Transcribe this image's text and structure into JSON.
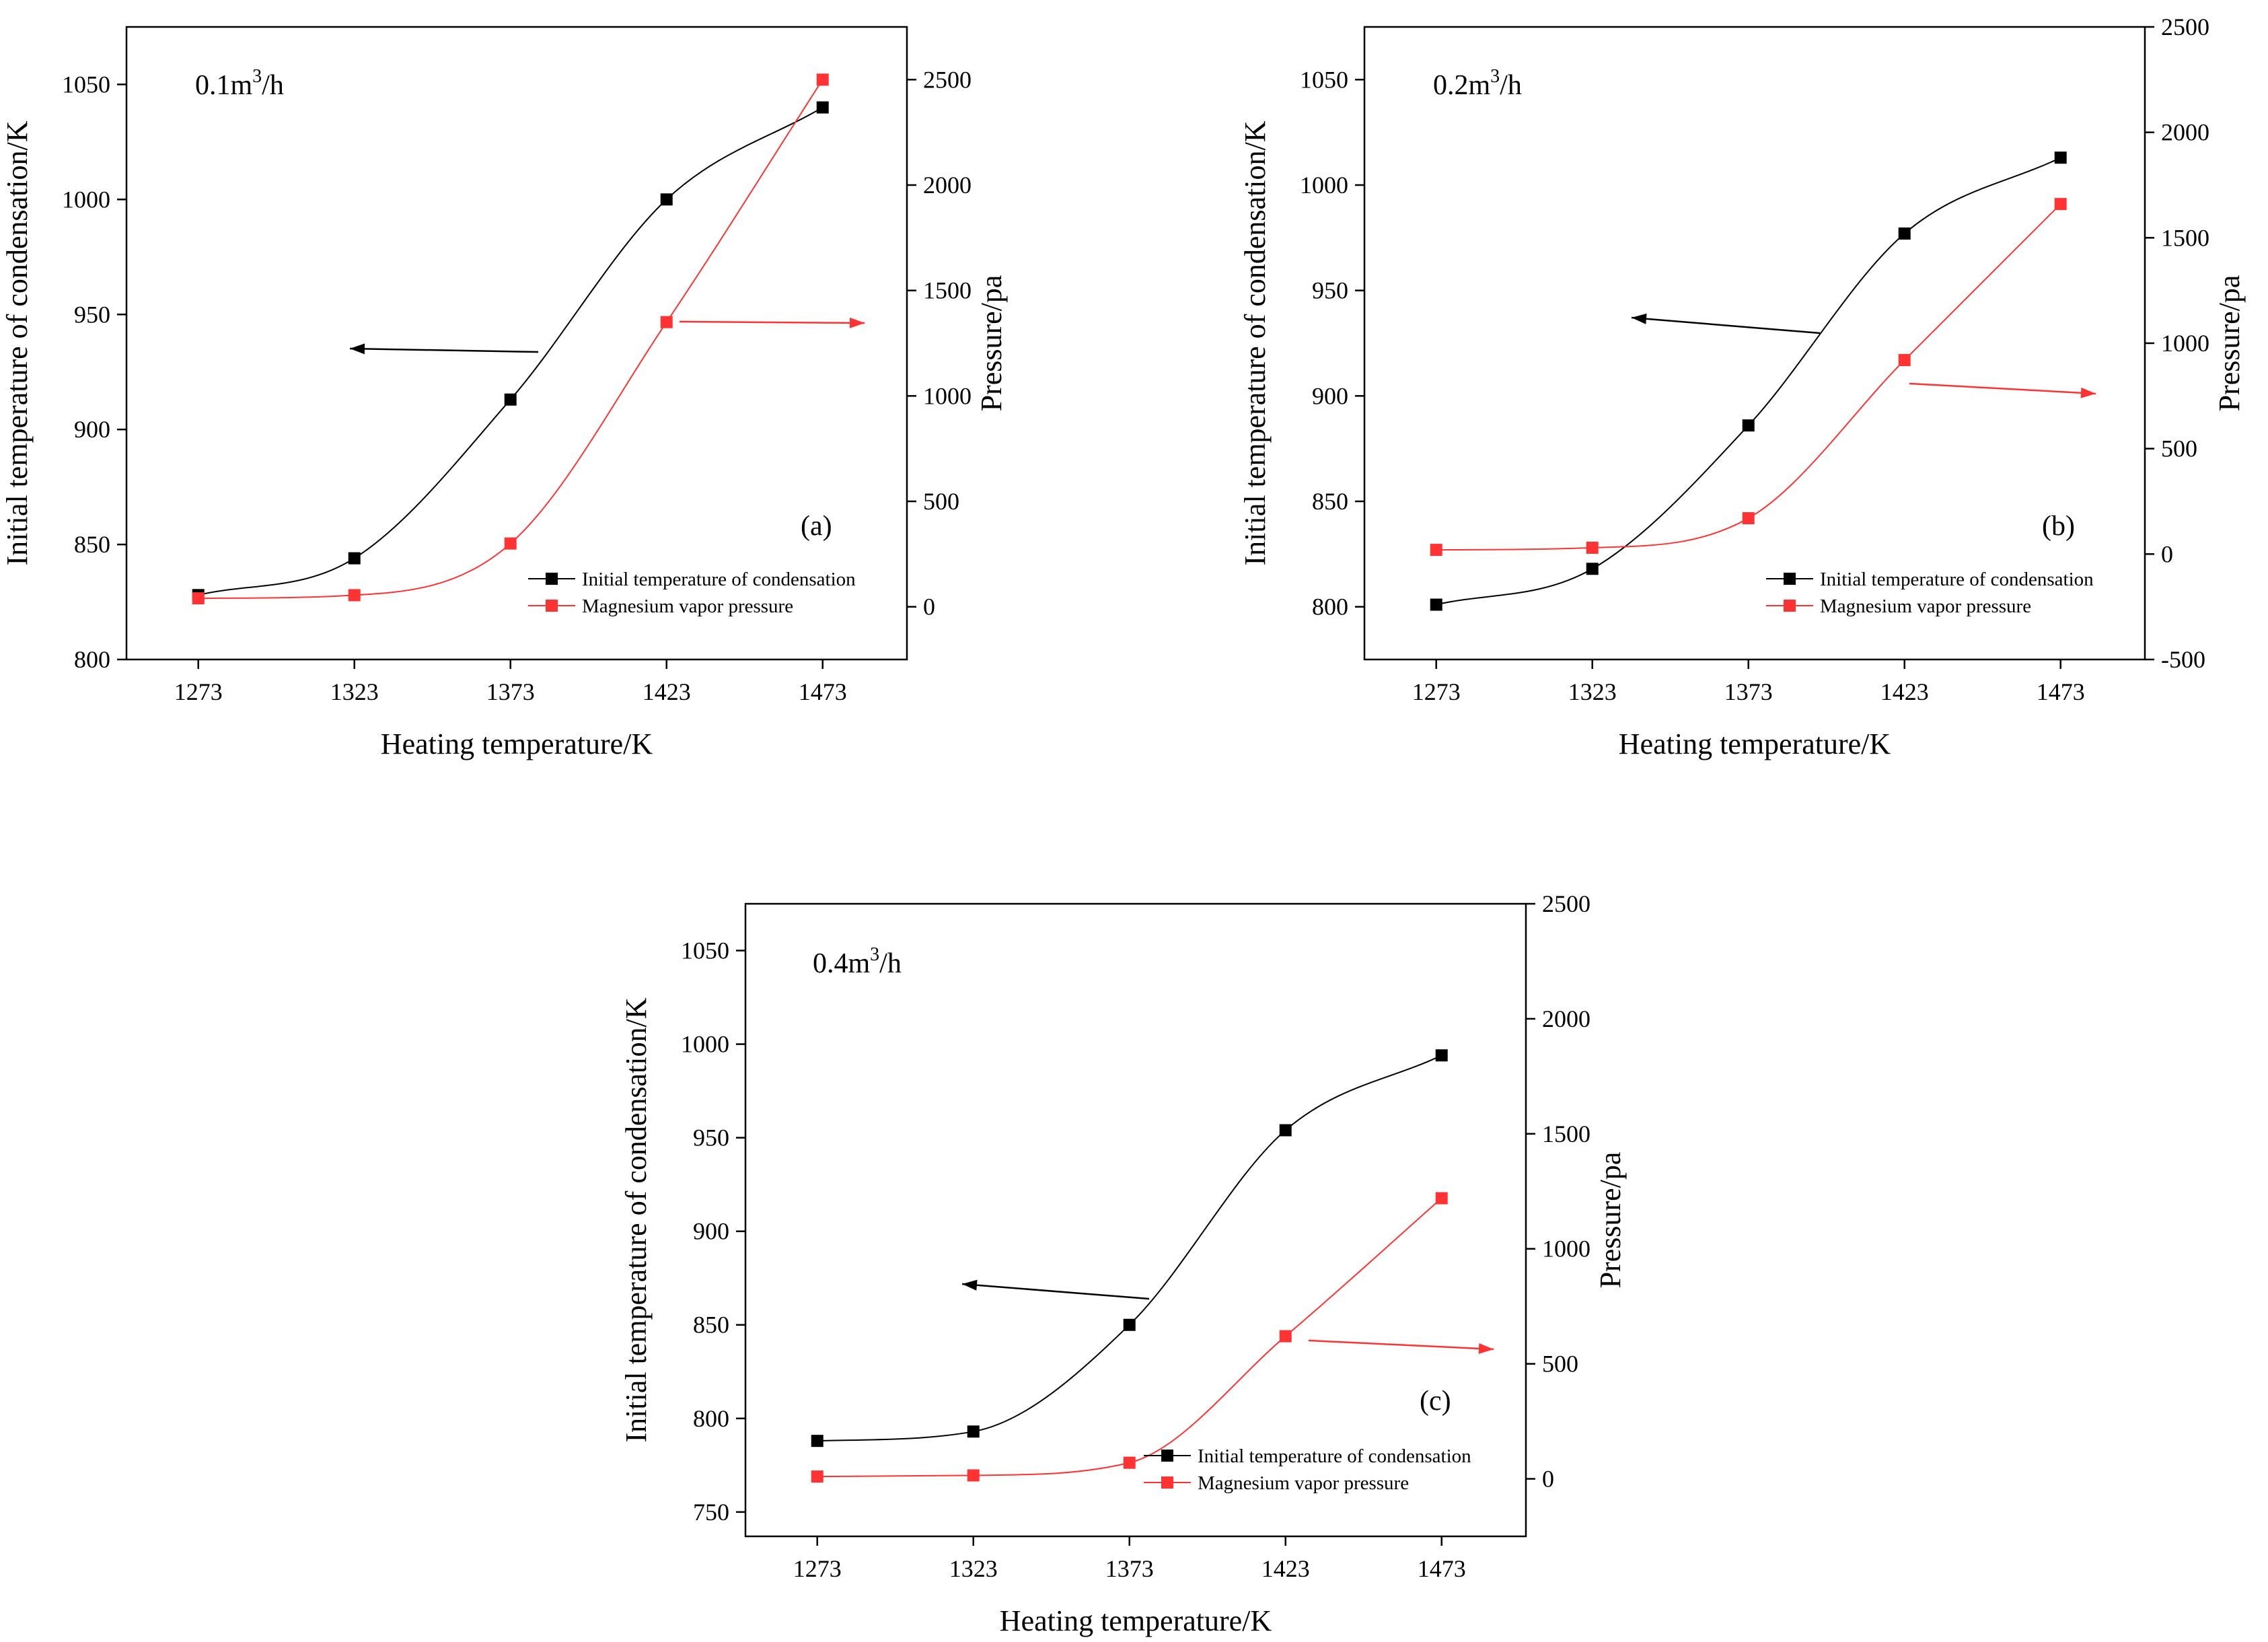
{
  "chart_data": [
    {
      "type": "line",
      "panel": "(a)",
      "flow_label": {
        "base": "0.1m",
        "exp": "3",
        "tail": "/h"
      },
      "xlabel": "Heating temperature/K",
      "ylabel_left": "Initial temperature of condensation/K",
      "ylabel_right": "Pressure/pa",
      "x": [
        1273,
        1323,
        1373,
        1423,
        1473
      ],
      "x_ticks": [
        "1273",
        "1323",
        "1373",
        "1423",
        "1473"
      ],
      "ylim_left": [
        800,
        1075
      ],
      "yticks_left": [
        800,
        850,
        900,
        950,
        1000,
        1050
      ],
      "ylim_right": [
        -250,
        2750
      ],
      "yticks_right": [
        0,
        500,
        1000,
        1500,
        2000,
        2500
      ],
      "series": [
        {
          "name": "Initial temperature of condensation",
          "axis": "left",
          "color": "#000000",
          "values": [
            828,
            844,
            913,
            1000,
            1040
          ]
        },
        {
          "name": "Magnesium vapor pressure",
          "axis": "right",
          "color": "#ff3333",
          "values": [
            40,
            55,
            300,
            1350,
            2500
          ]
        }
      ],
      "legend": [
        "Initial temperature of condensation",
        "Magnesium vapor pressure"
      ],
      "legend_loc": "lower-right"
    },
    {
      "type": "line",
      "panel": "(b)",
      "flow_label": {
        "base": "0.2m",
        "exp": "3",
        "tail": "/h"
      },
      "xlabel": "Heating temperature/K",
      "ylabel_left": "Initial temperature of condensation/K",
      "ylabel_right": "Pressure/pa",
      "x": [
        1273,
        1323,
        1373,
        1423,
        1473
      ],
      "x_ticks": [
        "1273",
        "1323",
        "1373",
        "1423",
        "1473"
      ],
      "ylim_left": [
        775,
        1075
      ],
      "yticks_left": [
        800,
        850,
        900,
        950,
        1000,
        1050
      ],
      "ylim_right": [
        -500,
        2500
      ],
      "yticks_right": [
        -500,
        0,
        500,
        1000,
        1500,
        2000,
        2500
      ],
      "series": [
        {
          "name": "Initial temperature of condensation",
          "axis": "left",
          "color": "#000000",
          "values": [
            801,
            818,
            886,
            977,
            1013
          ]
        },
        {
          "name": "Magnesium vapor pressure",
          "axis": "right",
          "color": "#ff3333",
          "values": [
            20,
            30,
            170,
            920,
            1660
          ]
        }
      ],
      "legend": [
        "Initial temperature of condensation",
        "Magnesium vapor pressure"
      ],
      "legend_loc": "lower-right"
    },
    {
      "type": "line",
      "panel": "(c)",
      "flow_label": {
        "base": "0.4m",
        "exp": "3",
        "tail": "/h"
      },
      "xlabel": "Heating temperature/K",
      "ylabel_left": "Initial temperature of condensation/K",
      "ylabel_right": "Pressure/pa",
      "x": [
        1273,
        1323,
        1373,
        1423,
        1473
      ],
      "x_ticks": [
        "1273",
        "1323",
        "1373",
        "1423",
        "1473"
      ],
      "ylim_left": [
        737,
        1075
      ],
      "yticks_left": [
        750,
        800,
        850,
        900,
        950,
        1000,
        1050
      ],
      "ylim_right": [
        -250,
        2500
      ],
      "yticks_right": [
        0,
        500,
        1000,
        1500,
        2000,
        2500
      ],
      "series": [
        {
          "name": "Initial temperature of condensation",
          "axis": "left",
          "color": "#000000",
          "values": [
            788,
            793,
            850,
            954,
            994
          ]
        },
        {
          "name": "Magnesium vapor pressure",
          "axis": "right",
          "color": "#ff3333",
          "values": [
            10,
            15,
            70,
            620,
            1220
          ]
        }
      ],
      "legend": [
        "Initial temperature of condensation",
        "Magnesium vapor pressure"
      ],
      "legend_loc": "lower-right"
    }
  ]
}
